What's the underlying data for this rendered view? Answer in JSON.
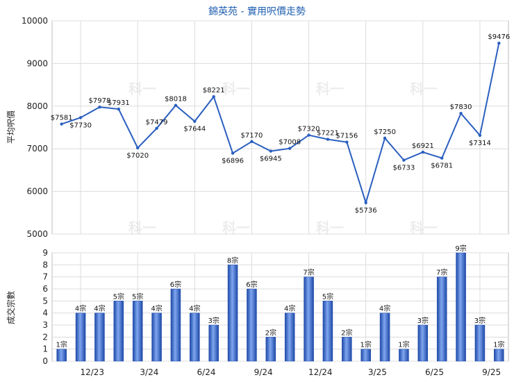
{
  "title": "錦英苑 - 實用呎價走勢",
  "x_tick_labels": [
    "12/23",
    "3/24",
    "6/24",
    "9/24",
    "12/24",
    "3/25",
    "6/25",
    "9/25"
  ],
  "chart_data": [
    {
      "type": "line",
      "ylabel": "平均呎價",
      "ylim": [
        5000,
        10000
      ],
      "y_ticks": [
        5000,
        6000,
        7000,
        8000,
        9000,
        10000
      ],
      "value_prefix": "$",
      "values": [
        7581,
        7730,
        7978,
        7931,
        7020,
        7479,
        8018,
        7644,
        8221,
        6896,
        7170,
        6945,
        7008,
        7320,
        7221,
        7156,
        5736,
        7250,
        6733,
        6921,
        6781,
        7830,
        7314,
        9476
      ],
      "color": "#2a5fc0"
    },
    {
      "type": "bar",
      "ylabel": "成交宗數",
      "ylim": [
        0,
        9
      ],
      "y_ticks": [
        0,
        1,
        2,
        3,
        4,
        5,
        6,
        7,
        8,
        9
      ],
      "value_suffix": "宗",
      "values": [
        1,
        4,
        4,
        5,
        5,
        4,
        6,
        4,
        3,
        8,
        6,
        2,
        4,
        7,
        5,
        2,
        1,
        4,
        1,
        3,
        7,
        9,
        3,
        1
      ],
      "color": "#3a6fd0"
    }
  ],
  "watermark": "科一"
}
